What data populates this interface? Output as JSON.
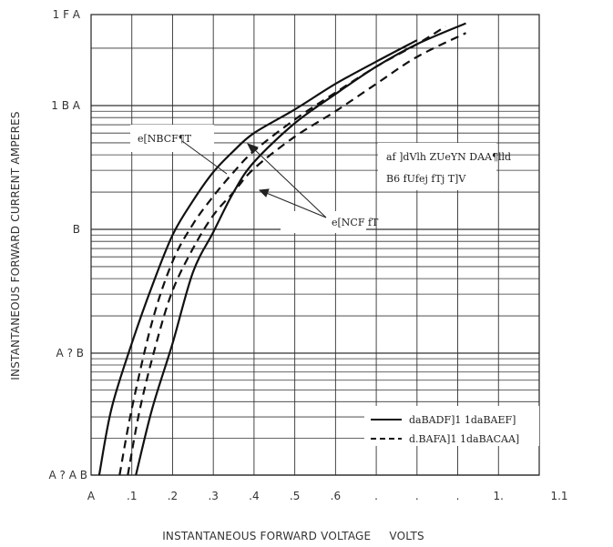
{
  "chart_data": {
    "type": "line",
    "title": "",
    "xlabel": "INSTANTANEOUS FORWARD VOLTAGE     VOLTS",
    "ylabel": "INSTANTANEOUS FORWARD CURRENT     AMPERES",
    "x_tick_labels": [
      "A",
      ".1",
      ".2",
      ".3",
      ".4",
      ".5",
      ".6",
      ".",
      ".",
      ".",
      "1.",
      "1.1"
    ],
    "y_tick_labels": [
      "1 F A",
      "1 B A",
      "B",
      "A ? B",
      "A ? A B"
    ],
    "annotations": {
      "curve_label_left": "e[NBCF¶T",
      "curve_label_right": "e[NCF fT",
      "condition_line_1": "af ]dVlh ZUeYN DAA¶lld",
      "condition_line_2": "B6 fUfej fTj T]V"
    },
    "legend": [
      {
        "style": "solid",
        "text": "daBADF]1 1daBAEF]"
      },
      {
        "style": "dashed",
        "text": "d.BAFA]1 1daBACAA]"
      }
    ],
    "grid": true,
    "series": [
      {
        "line_style": "solid",
        "points": [
          [
            0.02,
            0.01
          ],
          [
            0.05,
            0.035
          ],
          [
            0.1,
            0.12
          ],
          [
            0.15,
            0.35
          ],
          [
            0.2,
            0.9
          ],
          [
            0.25,
            1.7
          ],
          [
            0.3,
            2.9
          ],
          [
            0.35,
            4.3
          ],
          [
            0.4,
            6.0
          ],
          [
            0.5,
            9.3
          ],
          [
            0.6,
            13.0
          ],
          [
            0.7,
            17.0
          ],
          [
            0.8,
            22.0
          ]
        ]
      },
      {
        "line_style": "solid",
        "points": [
          [
            0.11,
            0.01
          ],
          [
            0.15,
            0.035
          ],
          [
            0.2,
            0.12
          ],
          [
            0.25,
            0.45
          ],
          [
            0.3,
            0.95
          ],
          [
            0.35,
            2.0
          ],
          [
            0.4,
            3.5
          ],
          [
            0.5,
            7.2
          ],
          [
            0.6,
            11.5
          ],
          [
            0.7,
            16.0
          ],
          [
            0.8,
            21.0
          ],
          [
            0.92,
            27.0
          ]
        ]
      },
      {
        "line_style": "dashed",
        "points": [
          [
            0.07,
            0.01
          ],
          [
            0.1,
            0.035
          ],
          [
            0.15,
            0.18
          ],
          [
            0.2,
            0.55
          ],
          [
            0.25,
            1.1
          ],
          [
            0.3,
            1.85
          ],
          [
            0.35,
            2.9
          ],
          [
            0.4,
            4.3
          ],
          [
            0.5,
            7.7
          ],
          [
            0.6,
            11.7
          ],
          [
            0.7,
            16.0
          ],
          [
            0.8,
            21.0
          ],
          [
            0.87,
            26.0
          ]
        ]
      },
      {
        "line_style": "dashed",
        "points": [
          [
            0.09,
            0.01
          ],
          [
            0.12,
            0.035
          ],
          [
            0.16,
            0.12
          ],
          [
            0.2,
            0.32
          ],
          [
            0.25,
            0.7
          ],
          [
            0.3,
            1.3
          ],
          [
            0.35,
            2.0
          ],
          [
            0.4,
            3.1
          ],
          [
            0.5,
            5.6
          ],
          [
            0.6,
            9.0
          ],
          [
            0.7,
            13.0
          ],
          [
            0.8,
            18.0
          ],
          [
            0.92,
            24.0
          ]
        ]
      }
    ]
  }
}
